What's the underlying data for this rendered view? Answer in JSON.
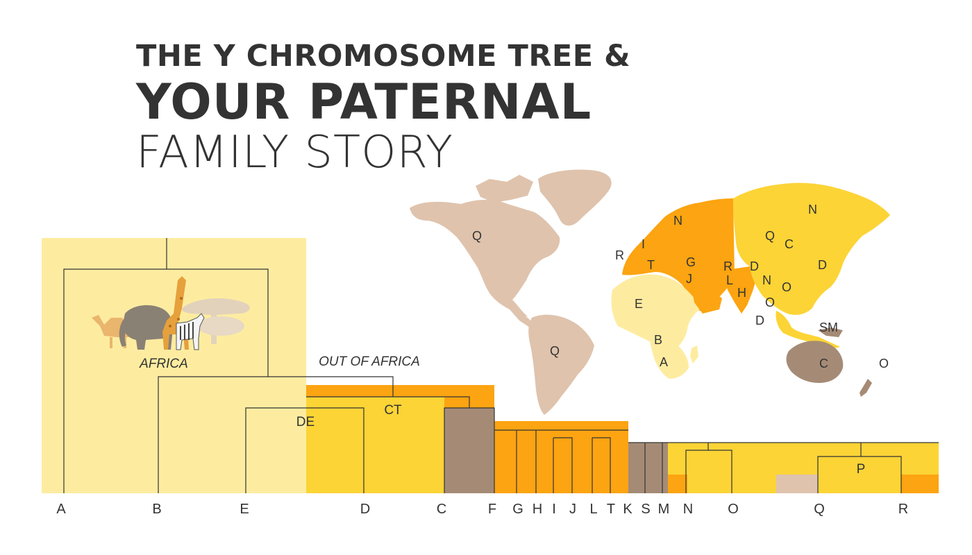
{
  "title": {
    "line1": "THE Y CHROMOSOME TREE &",
    "line2": "YOUR PATERNAL",
    "line3": "FAMILY STORY"
  },
  "colors": {
    "pale_yellow": "#fdeca0",
    "yellow": "#fcd436",
    "orange": "#fca411",
    "brown": "#a58b76",
    "tan": "#dfc3ad",
    "line": "#333333"
  },
  "tree": {
    "africa_label": "AFRICA",
    "out_of_africa_label": "OUT OF AFRICA",
    "node_ct": "CT",
    "node_de": "DE",
    "haplogroups": [
      "A",
      "B",
      "E",
      "D",
      "C",
      "F",
      "G",
      "H",
      "I",
      "J",
      "L",
      "T",
      "K",
      "S",
      "M",
      "N",
      "O",
      "Q",
      "R",
      "P"
    ]
  },
  "map": {
    "labels": [
      {
        "text": "Q",
        "region": "north-america"
      },
      {
        "text": "Q",
        "region": "south-america"
      },
      {
        "text": "E",
        "region": "north-africa"
      },
      {
        "text": "B",
        "region": "central-africa"
      },
      {
        "text": "A",
        "region": "southern-africa"
      },
      {
        "text": "R",
        "region": "western-europe"
      },
      {
        "text": "I",
        "region": "europe"
      },
      {
        "text": "N",
        "region": "northern-europe"
      },
      {
        "text": "T",
        "region": "mediterranean"
      },
      {
        "text": "G",
        "region": "caucasus"
      },
      {
        "text": "J",
        "region": "middle-east"
      },
      {
        "text": "R",
        "region": "central-asia"
      },
      {
        "text": "L",
        "region": "south-asia"
      },
      {
        "text": "H",
        "region": "india"
      },
      {
        "text": "D",
        "region": "tibet"
      },
      {
        "text": "N",
        "region": "east-asia"
      },
      {
        "text": "O",
        "region": "east-asia"
      },
      {
        "text": "O",
        "region": "southeast-asia"
      },
      {
        "text": "D",
        "region": "andaman"
      },
      {
        "text": "Q",
        "region": "siberia"
      },
      {
        "text": "C",
        "region": "mongolia"
      },
      {
        "text": "N",
        "region": "siberia-north"
      },
      {
        "text": "D",
        "region": "japan"
      },
      {
        "text": "SM",
        "region": "new-guinea"
      },
      {
        "text": "C",
        "region": "australia"
      },
      {
        "text": "O",
        "region": "pacific"
      }
    ]
  }
}
